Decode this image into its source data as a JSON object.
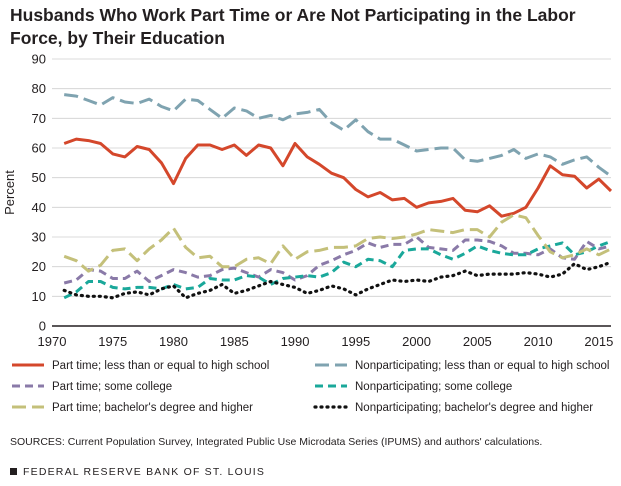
{
  "header": {
    "title_line1": "Husbands Who Work Part Time or Are Not Participating in the Labor",
    "title_line2": "Force, by Their Education"
  },
  "chart_data": {
    "type": "line",
    "title": "Husbands Who Work Part Time or Are Not Participating in the Labor Force, by Their Education",
    "ylabel": "Percent",
    "xlabel": "",
    "ylim": [
      0,
      90
    ],
    "xlim": [
      1970,
      2016
    ],
    "yticks": [
      0,
      10,
      20,
      30,
      40,
      50,
      60,
      70,
      80,
      90
    ],
    "xticks": [
      1970,
      1975,
      1980,
      1985,
      1990,
      1995,
      2000,
      2005,
      2010,
      2015
    ],
    "grid": "horizontal",
    "legend_position": "bottom",
    "x": [
      1971,
      1972,
      1973,
      1974,
      1975,
      1976,
      1977,
      1978,
      1979,
      1980,
      1981,
      1982,
      1983,
      1984,
      1985,
      1986,
      1987,
      1988,
      1989,
      1990,
      1991,
      1992,
      1993,
      1994,
      1995,
      1996,
      1997,
      1998,
      1999,
      2000,
      2001,
      2002,
      2003,
      2004,
      2005,
      2006,
      2007,
      2008,
      2009,
      2010,
      2011,
      2012,
      2013,
      2014,
      2015,
      2016
    ],
    "series": [
      {
        "name": "Part time; less than or equal to high school",
        "color": "#d4472b",
        "dash": "solid",
        "values": [
          61.5,
          63,
          62.5,
          61.5,
          58,
          57,
          60.5,
          59.5,
          55,
          48,
          56.5,
          61,
          61,
          59.5,
          61,
          57.5,
          61,
          60,
          54,
          61.5,
          57,
          54.5,
          51.5,
          50,
          46,
          43.5,
          45,
          42.5,
          43,
          40,
          41.5,
          42,
          43,
          39,
          38.5,
          40.5,
          37,
          38,
          40,
          46.5,
          54,
          51,
          50.5,
          46.5,
          49.5,
          45.5
        ]
      },
      {
        "name": "Nonparticipating; less than or equal to high school",
        "color": "#7fa3b0",
        "dash": "longdash",
        "values": [
          78,
          77.5,
          76,
          74.5,
          77,
          75.5,
          75,
          76.5,
          74,
          72.5,
          76.5,
          76,
          73,
          70,
          73.5,
          72.5,
          70,
          71,
          69.5,
          71.5,
          72,
          73,
          68.5,
          66,
          69.5,
          65.5,
          63,
          63,
          61,
          59,
          59.5,
          60,
          60,
          56,
          55.5,
          56.5,
          57.5,
          59.5,
          56.5,
          58,
          57,
          54.5,
          56,
          57,
          53.5,
          50.5
        ]
      },
      {
        "name": "Part time; some college",
        "color": "#8a7aa8",
        "dash": "dash",
        "values": [
          14.5,
          15.5,
          19,
          18.5,
          16,
          16,
          18.5,
          15,
          17,
          19,
          18,
          16.5,
          17,
          19,
          19.5,
          18,
          16.5,
          19,
          18,
          15.5,
          17,
          20.5,
          22,
          24,
          25.5,
          28,
          26.5,
          27.5,
          27.5,
          30,
          26.5,
          26,
          25.5,
          29,
          29,
          28.5,
          27,
          24.5,
          24.5,
          24,
          26,
          23,
          22.5,
          28.5,
          26,
          27
        ]
      },
      {
        "name": "Nonparticipating; some college",
        "color": "#1aa89a",
        "dash": "dash",
        "values": [
          9.5,
          11.5,
          15,
          15,
          13,
          12.5,
          13,
          13,
          12.5,
          14,
          12.5,
          13,
          16,
          15.5,
          15.5,
          17,
          16.5,
          14,
          16,
          16.5,
          17,
          16.5,
          18,
          21.5,
          20,
          22.5,
          22,
          20,
          25.5,
          26,
          26,
          24,
          22.5,
          24.5,
          27,
          25.5,
          24.5,
          24,
          24,
          26,
          27,
          28,
          24,
          25,
          27,
          28.5
        ]
      },
      {
        "name": "Part time; bachelor's degree and higher",
        "color": "#c4c07a",
        "dash": "longdash",
        "values": [
          23.5,
          22,
          18.5,
          20.5,
          25.5,
          26,
          22,
          26,
          29,
          33,
          26.5,
          23,
          23.5,
          20,
          20,
          22.5,
          23,
          21,
          27,
          22.5,
          25,
          25.5,
          26.5,
          26.5,
          27,
          29.5,
          30,
          29.5,
          30,
          31,
          32.5,
          32,
          31.5,
          32.5,
          32.5,
          30,
          35,
          37.5,
          36.5,
          30.5,
          25,
          23,
          24,
          26,
          24,
          26
        ]
      },
      {
        "name": "Nonparticipating; bachelor's degree and higher",
        "color": "#111111",
        "dash": "dot",
        "values": [
          12,
          10.5,
          10,
          10,
          9.5,
          11,
          11.5,
          10.5,
          12.5,
          13.5,
          9.5,
          11,
          12,
          14,
          11,
          12,
          13.5,
          15,
          14,
          13,
          11,
          12,
          13.5,
          12.5,
          10.5,
          12.5,
          14,
          15.5,
          15,
          15.5,
          15,
          16.5,
          17,
          18.5,
          17,
          17.5,
          17.5,
          17.5,
          18,
          17.5,
          16.5,
          17.5,
          21,
          19,
          20,
          21.5
        ]
      }
    ]
  },
  "legend": {
    "items": [
      "Part time; less than or equal to high school",
      "Nonparticipating; less than or equal to high school",
      "Part time; some college",
      "Nonparticipating; some college",
      "Part time; bachelor's degree and higher",
      "Nonparticipating; bachelor's degree and higher"
    ]
  },
  "footer": {
    "source": "SOURCES: Current Population Survey, Integrated Public Use Microdata Series (IPUMS) and authors' calculations.",
    "org": "FEDERAL RESERVE BANK OF ST. LOUIS"
  }
}
